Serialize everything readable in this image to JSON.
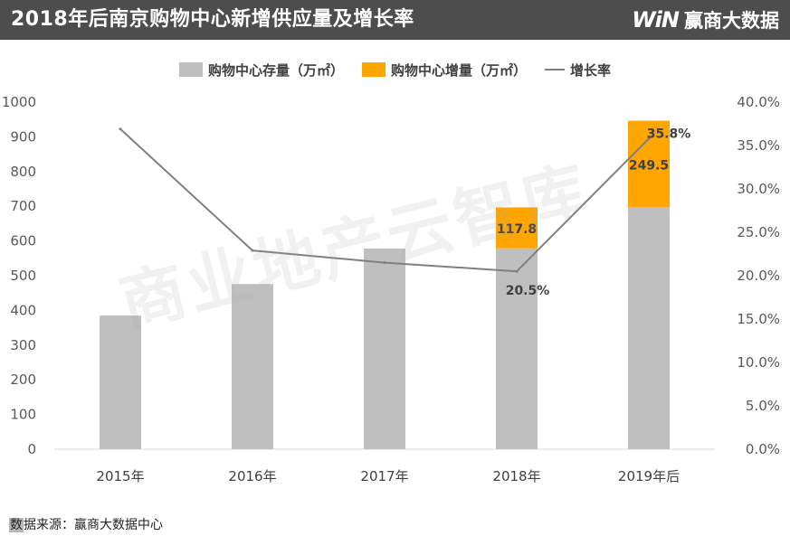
{
  "header": {
    "title": "2018年后南京购物中心新增供应量及增长率",
    "brand_logo": "WiN",
    "brand_name": "赢商大数据"
  },
  "legend": {
    "stock": "购物中心存量（万㎡）",
    "increase": "购物中心增量（万㎡）",
    "growth": "增长率"
  },
  "source": {
    "highlight": "数",
    "text": "据来源：赢商大数据中心"
  },
  "watermark": "商业地产云智库",
  "colors": {
    "stock": "#bfbfbf",
    "increase": "#ffa500",
    "growth_line": "#808080",
    "header_bg": "#4d4d4d"
  },
  "chart_data": {
    "type": "bar",
    "stacked": true,
    "categories": [
      "2015年",
      "2016年",
      "2017年",
      "2018年",
      "2019年后"
    ],
    "series": [
      {
        "name": "购物中心存量（万㎡）",
        "values": [
          385,
          476,
          578,
          579,
          697
        ]
      },
      {
        "name": "购物中心增量（万㎡）",
        "values": [
          null,
          null,
          null,
          117.8,
          249.5
        ]
      }
    ],
    "line_series": {
      "name": "增长率",
      "values": [
        36.9,
        22.9,
        21.5,
        20.5,
        35.8
      ],
      "axis": "right"
    },
    "data_labels": {
      "increase": [
        "",
        "",
        "",
        "117.8",
        "249.5"
      ],
      "growth": [
        "",
        "",
        "",
        "20.5%",
        "35.8%"
      ]
    },
    "ylim": [
      0,
      1000
    ],
    "yticks": [
      0,
      100,
      200,
      300,
      400,
      500,
      600,
      700,
      800,
      900,
      1000
    ],
    "y2lim": [
      0,
      40
    ],
    "y2ticks": [
      "0.0%",
      "5.0%",
      "10.0%",
      "15.0%",
      "20.0%",
      "25.0%",
      "30.0%",
      "35.0%",
      "40.0%"
    ],
    "legend_position": "top-center",
    "grid": false
  }
}
